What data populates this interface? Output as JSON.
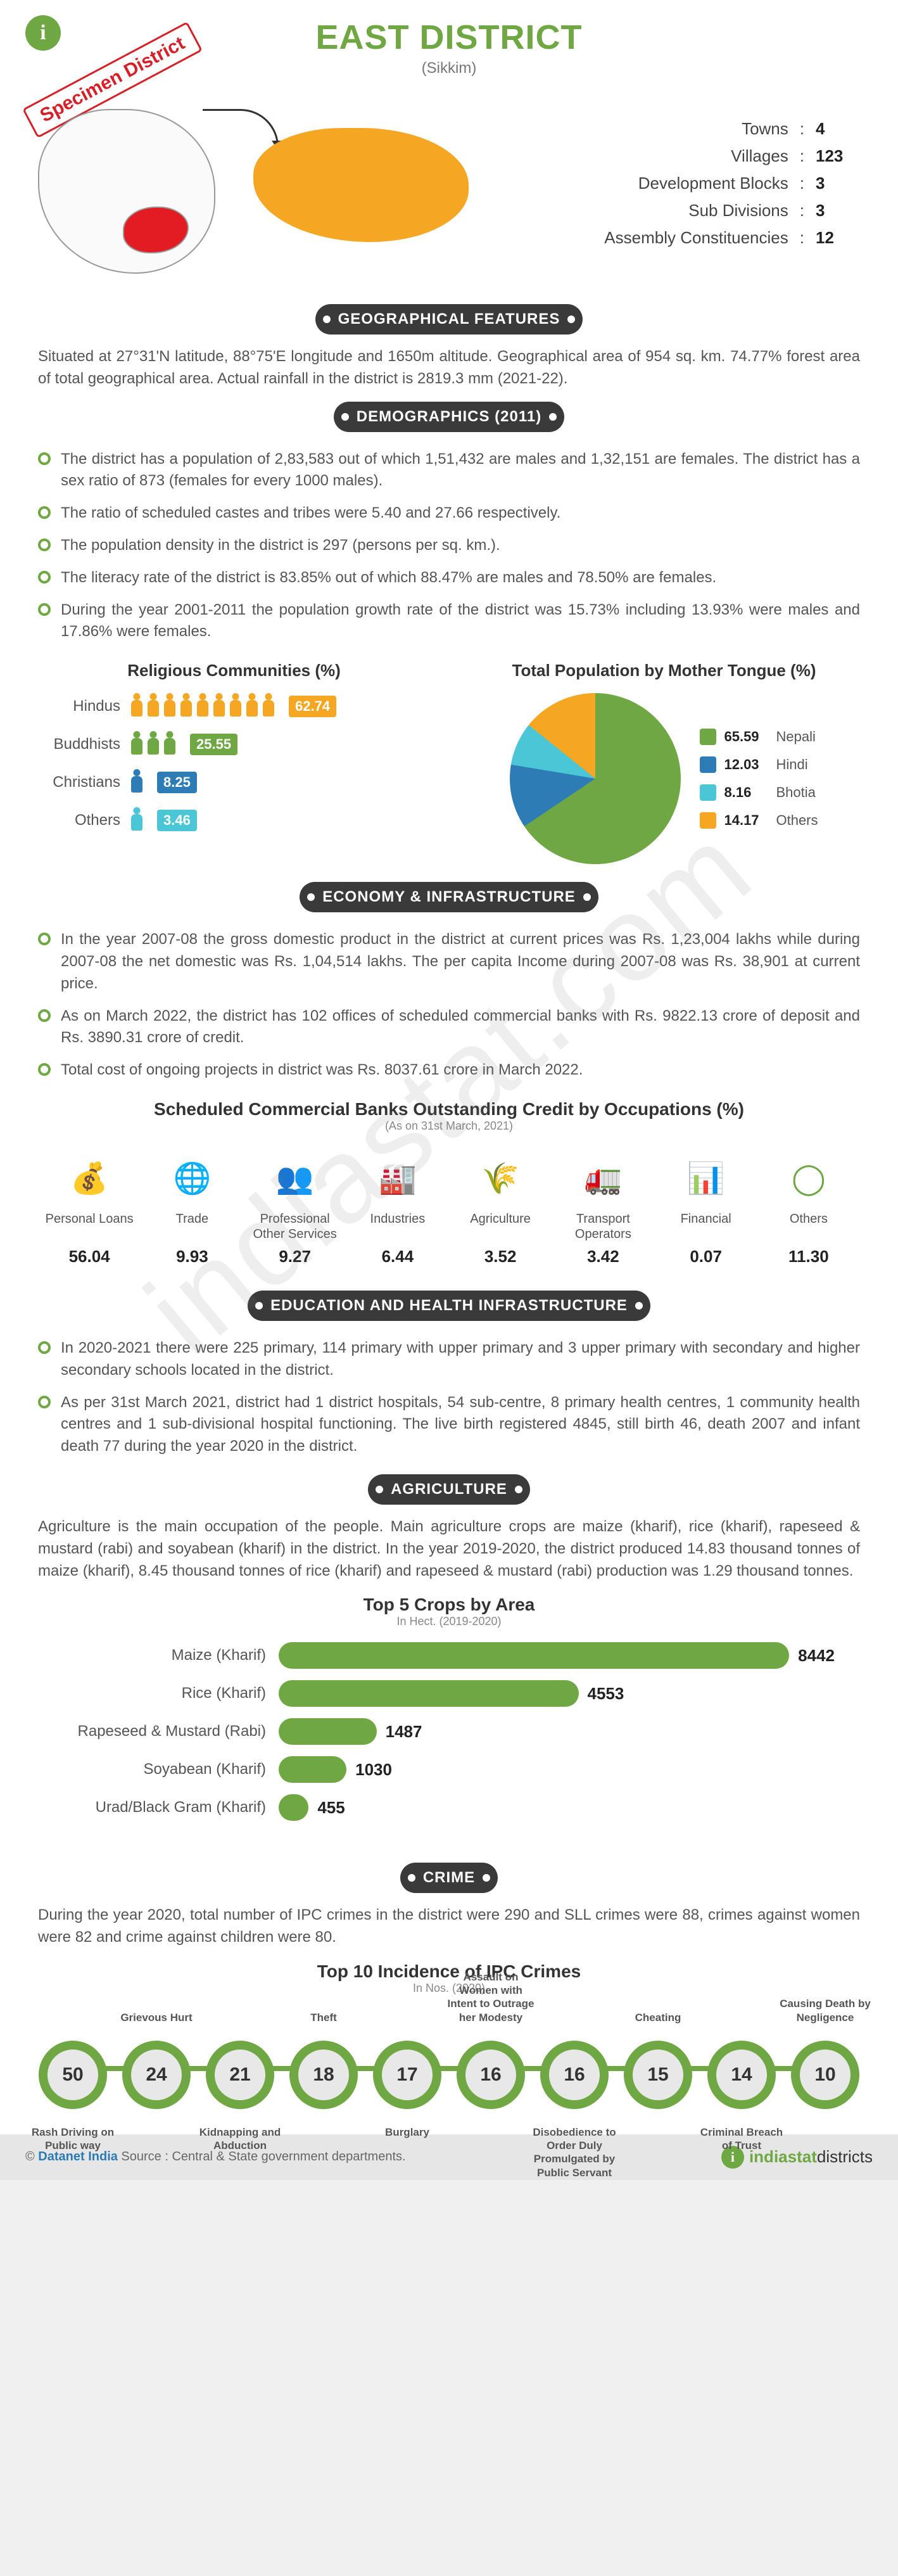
{
  "header": {
    "title": "EAST DISTRICT",
    "subtitle": "(Sikkim)",
    "specimen": "Specimen District",
    "stats": [
      {
        "label": "Towns",
        "value": "4"
      },
      {
        "label": "Villages",
        "value": "123"
      },
      {
        "label": "Development Blocks",
        "value": "3"
      },
      {
        "label": "Sub Divisions",
        "value": "3"
      },
      {
        "label": "Assembly Constituencies",
        "value": "12"
      }
    ]
  },
  "colors": {
    "accent": "#6fa843",
    "dark_badge": "#3a3a3a",
    "map_highlight": "#e31b23",
    "map_zoom": "#f5a623",
    "orange": "#f5a623",
    "green": "#6fa843",
    "blue": "#2d7cb5",
    "teal": "#4bc6d6"
  },
  "sections": {
    "geo": {
      "heading": "GEOGRAPHICAL FEATURES",
      "text": "Situated at 27°31'N latitude, 88°75'E longitude and 1650m altitude. Geographical area of 954 sq. km. 74.77% forest area of total geographical area. Actual rainfall in the district is 2819.3 mm (2021-22)."
    },
    "demo": {
      "heading": "DEMOGRAPHICS (2011)",
      "bullets": [
        "The district has a population of 2,83,583 out of which 1,51,432 are males and 1,32,151 are females. The district has a sex ratio of 873 (females for every 1000 males).",
        "The ratio of scheduled castes and tribes were 5.40 and 27.66 respectively.",
        "The population density in the district is 297 (persons per sq. km.).",
        "The literacy rate of the district is 83.85% out of which 88.47% are males and 78.50% are females.",
        "During the year 2001-2011 the population growth rate of the district was 15.73% including 13.93% were males and 17.86% were females."
      ]
    },
    "religion": {
      "title": "Religious Communities (%)",
      "rows": [
        {
          "label": "Hindus",
          "value": 62.74,
          "color": "#f5a623",
          "badge_color": "#f5a623",
          "icons": 9
        },
        {
          "label": "Buddhists",
          "value": 25.55,
          "color": "#6fa843",
          "badge_color": "#6fa843",
          "icons": 3
        },
        {
          "label": "Christians",
          "value": 8.25,
          "color": "#2d7cb5",
          "badge_color": "#2d7cb5",
          "icons": 1
        },
        {
          "label": "Others",
          "value": 3.46,
          "color": "#4bc6d6",
          "badge_color": "#4bc6d6",
          "icons": 1
        }
      ]
    },
    "tongue": {
      "title": "Total Population by Mother Tongue (%)",
      "items": [
        {
          "label": "Nepali",
          "value": 65.59,
          "color": "#6fa843"
        },
        {
          "label": "Hindi",
          "value": 12.03,
          "color": "#2d7cb5"
        },
        {
          "label": "Bhotia",
          "value": 8.16,
          "color": "#4bc6d6"
        },
        {
          "label": "Others",
          "value": 14.17,
          "color": "#f5a623"
        }
      ]
    },
    "economy": {
      "heading": "ECONOMY & INFRASTRUCTURE",
      "bullets": [
        "In the year 2007-08 the gross domestic product in the district at current prices was Rs. 1,23,004 lakhs while during 2007-08 the net domestic was Rs. 1,04,514 lakhs. The per capita Income during 2007-08 was Rs. 38,901 at current price.",
        "As on March 2022, the district has 102 offices of scheduled commercial banks with Rs. 9822.13 crore of deposit and Rs. 3890.31 crore of credit.",
        "Total cost of ongoing projects in district was Rs. 8037.61 crore in March 2022."
      ],
      "credit_title": "Scheduled Commercial Banks Outstanding Credit by Occupations (%)",
      "credit_note": "(As on 31st March, 2021)",
      "occupations": [
        {
          "label": "Personal Loans",
          "value": "56.04",
          "glyph": "💰"
        },
        {
          "label": "Trade",
          "value": "9.93",
          "glyph": "🌐"
        },
        {
          "label": "Professional Other Services",
          "value": "9.27",
          "glyph": "👥"
        },
        {
          "label": "Industries",
          "value": "6.44",
          "glyph": "🏭"
        },
        {
          "label": "Agriculture",
          "value": "3.52",
          "glyph": "🌾"
        },
        {
          "label": "Transport Operators",
          "value": "3.42",
          "glyph": "🚛"
        },
        {
          "label": "Financial",
          "value": "0.07",
          "glyph": "📊"
        },
        {
          "label": "Others",
          "value": "11.30",
          "glyph": "◯"
        }
      ]
    },
    "edu": {
      "heading": "EDUCATION AND HEALTH INFRASTRUCTURE",
      "bullets": [
        "In 2020-2021 there were 225 primary, 114 primary with upper primary and 3 upper primary with secondary and higher secondary schools located in the district.",
        "As per 31st March 2021, district had 1 district hospitals, 54 sub-centre, 8 primary health centres, 1 community health centres and 1 sub-divisional hospital functioning. The live birth registered 4845, still birth 46, death 2007 and infant death 77 during the year 2020 in the district."
      ]
    },
    "agri": {
      "heading": "AGRICULTURE",
      "text": "Agriculture is the main occupation of the people. Main agriculture crops are maize (kharif), rice (kharif), rapeseed & mustard (rabi) and soyabean (kharif) in the district. In the year 2019-2020, the district produced 14.83 thousand tonnes of maize (kharif), 8.45 thousand tonnes of rice (kharif) and rapeseed & mustard (rabi) production was 1.29 thousand tonnes.",
      "crops_title": "Top 5 Crops by Area",
      "crops_note": "In Hect. (2019-2020)",
      "crops_max": 8442,
      "crops": [
        {
          "label": "Maize (Kharif)",
          "value": 8442
        },
        {
          "label": "Rice (Kharif)",
          "value": 4553
        },
        {
          "label": "Rapeseed & Mustard (Rabi)",
          "value": 1487
        },
        {
          "label": "Soyabean (Kharif)",
          "value": 1030
        },
        {
          "label": "Urad/Black Gram (Kharif)",
          "value": 455
        }
      ]
    },
    "crime": {
      "heading": "CRIME",
      "text": "During the year 2020, total number of IPC crimes in the district were 290 and SLL crimes were 88, crimes against women were 82 and crime against children were 80.",
      "title": "Top 10 Incidence of IPC Crimes",
      "note": "In Nos. (2020)",
      "nodes": [
        {
          "value": 50,
          "label": "Rash Driving on Public way",
          "pos": "bottom"
        },
        {
          "value": 24,
          "label": "Grievous Hurt",
          "pos": "top"
        },
        {
          "value": 21,
          "label": "Kidnapping and Abduction",
          "pos": "bottom"
        },
        {
          "value": 18,
          "label": "Theft",
          "pos": "top"
        },
        {
          "value": 17,
          "label": "Burglary",
          "pos": "bottom"
        },
        {
          "value": 16,
          "label": "Assault on Women with Intent to Outrage her Modesty",
          "pos": "top"
        },
        {
          "value": 16,
          "label": "Disobedience to Order Duly Promulgated by Public Servant",
          "pos": "bottom"
        },
        {
          "value": 15,
          "label": "Cheating",
          "pos": "top"
        },
        {
          "value": 14,
          "label": "Criminal Breach of Trust",
          "pos": "bottom"
        },
        {
          "value": 10,
          "label": "Causing Death by Negligence",
          "pos": "top"
        }
      ]
    }
  },
  "footer": {
    "left_pre": "© ",
    "left_link": "Datanet India",
    "left_post": " Source : Central & State government departments.",
    "right_brand": "indiastat",
    "right_suffix": "districts"
  },
  "watermark": "indiastat.com"
}
